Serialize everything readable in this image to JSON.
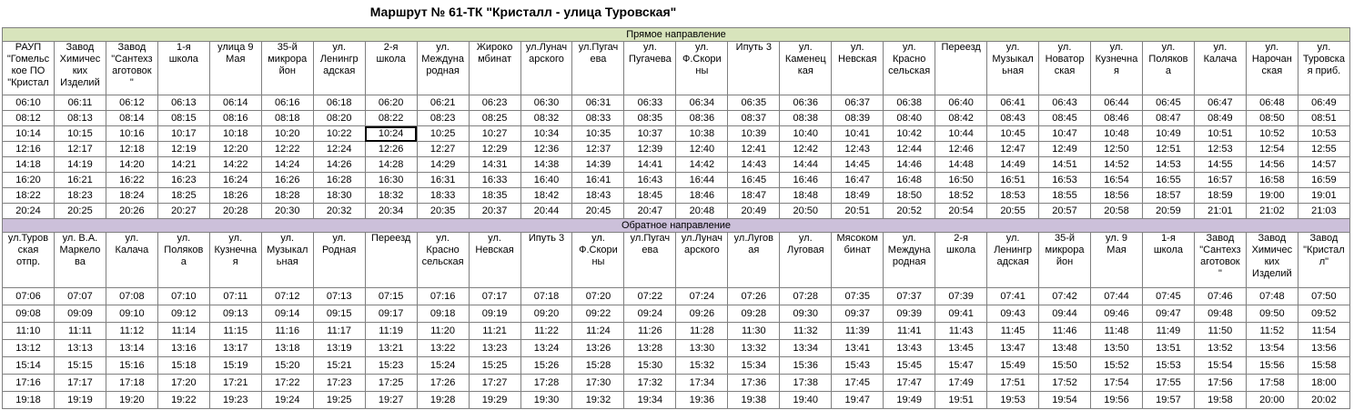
{
  "title": "Маршрут № 61-ТК \"Кристалл - улица Туровская\"",
  "forward": {
    "label": "Прямое направление",
    "headers": [
      "РАУП\n\"Гомельс\nкое ПО\n\"Кристал",
      "Завод\nХимичес\nких\nИзделий",
      "Завод\n\"Сантехз\nаготовок\n\"",
      "1-я\nшкола",
      "улица 9\nМая",
      "35-й\nмикрора\nйон",
      "ул.\nЛенингр\nадская",
      "2-я\nшкола",
      "ул.\nМеждуна\nродная",
      "Жироко\nмбинат",
      "ул.Лунач\nарского",
      "ул.Пугач\nева",
      "ул.\nПугачева",
      "ул.\nФ.Скори\nны",
      "Ипуть 3",
      "ул.\nКаменец\nкая",
      "ул.\nНевская",
      "ул.\nКрасно\nсельская",
      "Переезд",
      "ул.\nМузыкал\nьная",
      "ул.\nНоватор\nская",
      "ул.\nКузнечна\nя",
      "ул.\nПоляков\nа",
      "ул.\nКалача",
      "ул.\nНарочан\nская",
      "ул.\nТуровска\nя приб."
    ],
    "rows": [
      [
        "06:10",
        "06:11",
        "06:12",
        "06:13",
        "06:14",
        "06:16",
        "06:18",
        "06:20",
        "06:21",
        "06:23",
        "06:30",
        "06:31",
        "06:33",
        "06:34",
        "06:35",
        "06:36",
        "06:37",
        "06:38",
        "06:40",
        "06:41",
        "06:43",
        "06:44",
        "06:45",
        "06:47",
        "06:48",
        "06:49"
      ],
      [
        "08:12",
        "08:13",
        "08:14",
        "08:15",
        "08:16",
        "08:18",
        "08:20",
        "08:22",
        "08:23",
        "08:25",
        "08:32",
        "08:33",
        "08:35",
        "08:36",
        "08:37",
        "08:38",
        "08:39",
        "08:40",
        "08:42",
        "08:43",
        "08:45",
        "08:46",
        "08:47",
        "08:49",
        "08:50",
        "08:51"
      ],
      [
        "10:14",
        "10:15",
        "10:16",
        "10:17",
        "10:18",
        "10:20",
        "10:22",
        "10:24",
        "10:25",
        "10:27",
        "10:34",
        "10:35",
        "10:37",
        "10:38",
        "10:39",
        "10:40",
        "10:41",
        "10:42",
        "10:44",
        "10:45",
        "10:47",
        "10:48",
        "10:49",
        "10:51",
        "10:52",
        "10:53"
      ],
      [
        "12:16",
        "12:17",
        "12:18",
        "12:19",
        "12:20",
        "12:22",
        "12:24",
        "12:26",
        "12:27",
        "12:29",
        "12:36",
        "12:37",
        "12:39",
        "12:40",
        "12:41",
        "12:42",
        "12:43",
        "12:44",
        "12:46",
        "12:47",
        "12:49",
        "12:50",
        "12:51",
        "12:53",
        "12:54",
        "12:55"
      ],
      [
        "14:18",
        "14:19",
        "14:20",
        "14:21",
        "14:22",
        "14:24",
        "14:26",
        "14:28",
        "14:29",
        "14:31",
        "14:38",
        "14:39",
        "14:41",
        "14:42",
        "14:43",
        "14:44",
        "14:45",
        "14:46",
        "14:48",
        "14:49",
        "14:51",
        "14:52",
        "14:53",
        "14:55",
        "14:56",
        "14:57"
      ],
      [
        "16:20",
        "16:21",
        "16:22",
        "16:23",
        "16:24",
        "16:26",
        "16:28",
        "16:30",
        "16:31",
        "16:33",
        "16:40",
        "16:41",
        "16:43",
        "16:44",
        "16:45",
        "16:46",
        "16:47",
        "16:48",
        "16:50",
        "16:51",
        "16:53",
        "16:54",
        "16:55",
        "16:57",
        "16:58",
        "16:59"
      ],
      [
        "18:22",
        "18:23",
        "18:24",
        "18:25",
        "18:26",
        "18:28",
        "18:30",
        "18:32",
        "18:33",
        "18:35",
        "18:42",
        "18:43",
        "18:45",
        "18:46",
        "18:47",
        "18:48",
        "18:49",
        "18:50",
        "18:52",
        "18:53",
        "18:55",
        "18:56",
        "18:57",
        "18:59",
        "19:00",
        "19:01"
      ],
      [
        "20:24",
        "20:25",
        "20:26",
        "20:27",
        "20:28",
        "20:30",
        "20:32",
        "20:34",
        "20:35",
        "20:37",
        "20:44",
        "20:45",
        "20:47",
        "20:48",
        "20:49",
        "20:50",
        "20:51",
        "20:52",
        "20:54",
        "20:55",
        "20:57",
        "20:58",
        "20:59",
        "21:01",
        "21:02",
        "21:03"
      ]
    ]
  },
  "backward": {
    "label": "Обратное направление",
    "headers": [
      "ул.Туров\nская\nотпр.",
      "ул. В.А.\nМаркело\nва",
      "ул.\nКалача",
      "ул.\nПоляков\nа",
      "ул.\nКузнечна\nя",
      "ул.\nМузыкал\nьная",
      "ул.\nРодная",
      "Переезд",
      "ул.\nКрасно\nсельская",
      "ул.\nНевская",
      "Ипуть 3",
      "ул.\nФ.Скори\nны",
      "ул.Пугач\nева",
      "ул.Лунач\nарского",
      "ул.Лугов\nая",
      "ул.\nЛуговая",
      "Мясоком\nбинат",
      "ул.\nМеждуна\nродная",
      "2-я\nшкола",
      "ул.\nЛенингр\nадская",
      "35-й\nмикрора\nйон",
      "ул. 9\nМая",
      "1-я\nшкола",
      "Завод\n\"Сантехз\nаготовок\n\"",
      "Завод\nХимичес\nких\nИзделий",
      "Завод\n\"Кристал\nл\""
    ],
    "rows": [
      [
        "07:06",
        "07:07",
        "07:08",
        "07:10",
        "07:11",
        "07:12",
        "07:13",
        "07:15",
        "07:16",
        "07:17",
        "07:18",
        "07:20",
        "07:22",
        "07:24",
        "07:26",
        "07:28",
        "07:35",
        "07:37",
        "07:39",
        "07:41",
        "07:42",
        "07:44",
        "07:45",
        "07:46",
        "07:48",
        "07:50"
      ],
      [
        "09:08",
        "09:09",
        "09:10",
        "09:12",
        "09:13",
        "09:14",
        "09:15",
        "09:17",
        "09:18",
        "09:19",
        "09:20",
        "09:22",
        "09:24",
        "09:26",
        "09:28",
        "09:30",
        "09:37",
        "09:39",
        "09:41",
        "09:43",
        "09:44",
        "09:46",
        "09:47",
        "09:48",
        "09:50",
        "09:52"
      ],
      [
        "11:10",
        "11:11",
        "11:12",
        "11:14",
        "11:15",
        "11:16",
        "11:17",
        "11:19",
        "11:20",
        "11:21",
        "11:22",
        "11:24",
        "11:26",
        "11:28",
        "11:30",
        "11:32",
        "11:39",
        "11:41",
        "11:43",
        "11:45",
        "11:46",
        "11:48",
        "11:49",
        "11:50",
        "11:52",
        "11:54"
      ],
      [
        "13:12",
        "13:13",
        "13:14",
        "13:16",
        "13:17",
        "13:18",
        "13:19",
        "13:21",
        "13:22",
        "13:23",
        "13:24",
        "13:26",
        "13:28",
        "13:30",
        "13:32",
        "13:34",
        "13:41",
        "13:43",
        "13:45",
        "13:47",
        "13:48",
        "13:50",
        "13:51",
        "13:52",
        "13:54",
        "13:56"
      ],
      [
        "15:14",
        "15:15",
        "15:16",
        "15:18",
        "15:19",
        "15:20",
        "15:21",
        "15:23",
        "15:24",
        "15:25",
        "15:26",
        "15:28",
        "15:30",
        "15:32",
        "15:34",
        "15:36",
        "15:43",
        "15:45",
        "15:47",
        "15:49",
        "15:50",
        "15:52",
        "15:53",
        "15:54",
        "15:56",
        "15:58"
      ],
      [
        "17:16",
        "17:17",
        "17:18",
        "17:20",
        "17:21",
        "17:22",
        "17:23",
        "17:25",
        "17:26",
        "17:27",
        "17:28",
        "17:30",
        "17:32",
        "17:34",
        "17:36",
        "17:38",
        "17:45",
        "17:47",
        "17:49",
        "17:51",
        "17:52",
        "17:54",
        "17:55",
        "17:56",
        "17:58",
        "18:00"
      ],
      [
        "19:18",
        "19:19",
        "19:20",
        "19:22",
        "19:23",
        "19:24",
        "19:25",
        "19:27",
        "19:28",
        "19:29",
        "19:30",
        "19:32",
        "19:34",
        "19:36",
        "19:38",
        "19:40",
        "19:47",
        "19:49",
        "19:51",
        "19:53",
        "19:54",
        "19:56",
        "19:57",
        "19:58",
        "20:00",
        "20:02"
      ]
    ]
  }
}
